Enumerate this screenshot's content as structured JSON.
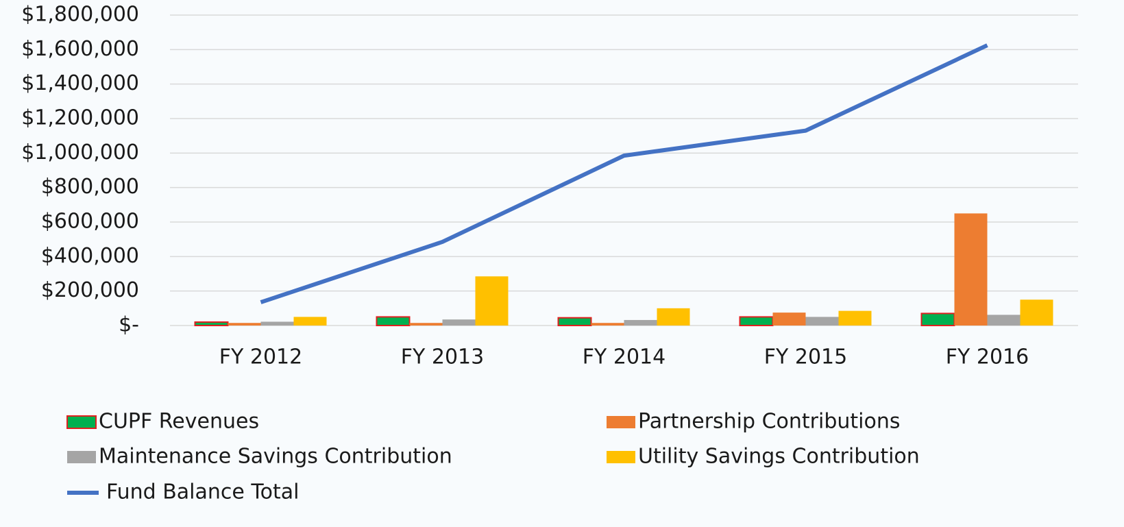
{
  "chart_data": {
    "type": "bar",
    "categories": [
      "FY 2012",
      "FY 2013",
      "FY 2014",
      "FY 2015",
      "FY 2016"
    ],
    "series": [
      {
        "name": "CUPF Revenues",
        "color": "#00b050",
        "edgecolor": "#e02020",
        "values": [
          20000,
          50000,
          45000,
          50000,
          70000
        ]
      },
      {
        "name": "Partnership Contributions",
        "color": "#ed7d31",
        "values": [
          15000,
          15000,
          15000,
          75000,
          650000
        ]
      },
      {
        "name": "Maintenance Savings Contribution",
        "color": "#a5a5a5",
        "values": [
          22000,
          35000,
          32000,
          50000,
          62000
        ]
      },
      {
        "name": "Utility Savings Contribution",
        "color": "#ffc000",
        "values": [
          50000,
          285000,
          100000,
          85000,
          150000
        ]
      },
      {
        "name": "Fund Balance Total",
        "type": "line",
        "color": "#4472c4",
        "values": [
          135000,
          485000,
          985000,
          1130000,
          1625000
        ]
      }
    ],
    "ylim": [
      0,
      1800000
    ],
    "yticks": [
      {
        "value": 0,
        "label": "$-"
      },
      {
        "value": 200000,
        "label": "$200,000"
      },
      {
        "value": 400000,
        "label": "$400,000"
      },
      {
        "value": 600000,
        "label": "$600,000"
      },
      {
        "value": 800000,
        "label": "$800,000"
      },
      {
        "value": 1000000,
        "label": "$1,000,000"
      },
      {
        "value": 1200000,
        "label": "$1,200,000"
      },
      {
        "value": 1400000,
        "label": "$1,400,000"
      },
      {
        "value": 1600000,
        "label": "$1,600,000"
      },
      {
        "value": 1800000,
        "label": "$1,800,000"
      }
    ],
    "grid": true
  }
}
